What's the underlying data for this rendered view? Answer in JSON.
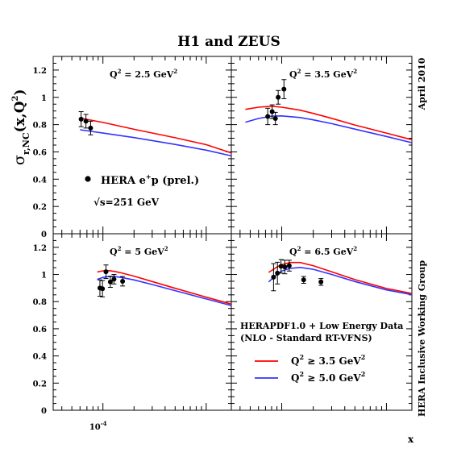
{
  "title": "H1 and ZEUS",
  "side_labels": {
    "top_right": "April 2010",
    "bottom_right": "HERA Inclusive Working Group"
  },
  "y_axis_label": {
    "main": "σ",
    "sub": "r,NC",
    "rest": "(x,Q",
    "sup": "2",
    "close": ")"
  },
  "x_axis_label": "x",
  "x_tick_label": {
    "base": "10",
    "exp": "-4"
  },
  "y_ticks": [
    "0",
    "0.2",
    "0.4",
    "0.6",
    "0.8",
    "1",
    "1.2"
  ],
  "legend_top": {
    "data_label": {
      "pre": "HERA e",
      "sup": "+",
      "post": "p (prel.)"
    },
    "energy": "√s=251 GeV"
  },
  "legend_bottom": {
    "line1": "HERAPDF1.0 + Low Energy Data",
    "line2": "(NLO - Standard RT-VFNS)",
    "entries": [
      {
        "pre": "Q",
        "sup": "2",
        "post": " ≥ 3.5 GeV",
        "sup2": "2",
        "color": "#ff0000"
      },
      {
        "pre": "Q",
        "sup": "2",
        "post": " ≥ 5.0 GeV",
        "sup2": "2",
        "color": "#3333ff"
      }
    ]
  },
  "colors": {
    "fit_q2_35": "#ff0000",
    "fit_q2_50": "#3333ff",
    "points": "#000000"
  },
  "chart_data": [
    {
      "type": "scatter",
      "label": {
        "pre": "Q",
        "sup": "2",
        "mid": " = 2.5 GeV",
        "sup2": "2"
      },
      "x_scale": "log",
      "xlim": [
        3.3e-05,
        0.00175
      ],
      "ylim": [
        0,
        1.3
      ],
      "points": [
        {
          "x": 6.15e-05,
          "y": 0.84,
          "err": 0.055
        },
        {
          "x": 6.85e-05,
          "y": 0.825,
          "err": 0.05
        },
        {
          "x": 7.6e-05,
          "y": 0.775,
          "err": 0.05
        }
      ],
      "series": [
        {
          "x": [
            6e-05,
            0.0001,
            0.0002,
            0.0005,
            0.001,
            0.00175
          ],
          "y": [
            0.848,
            0.816,
            0.766,
            0.704,
            0.653,
            0.592
          ]
        },
        {
          "x": [
            6e-05,
            0.0001,
            0.0002,
            0.0005,
            0.001,
            0.00175
          ],
          "y": [
            0.762,
            0.738,
            0.705,
            0.655,
            0.613,
            0.571
          ]
        }
      ]
    },
    {
      "type": "scatter",
      "label": {
        "pre": "Q",
        "sup": "2",
        "mid": " = 3.5 GeV",
        "sup2": "2"
      },
      "x_scale": "log",
      "xlim": [
        3.3e-05,
        0.00175
      ],
      "ylim": [
        0,
        1.3
      ],
      "points": [
        {
          "x": 7.35e-05,
          "y": 0.86,
          "err": 0.06
        },
        {
          "x": 8.1e-05,
          "y": 0.895,
          "err": 0.05
        },
        {
          "x": 8.7e-05,
          "y": 0.845,
          "err": 0.045
        },
        {
          "x": 9.25e-05,
          "y": 1.0,
          "err": 0.05
        },
        {
          "x": 0.000105,
          "y": 1.06,
          "err": 0.07
        }
      ],
      "series": [
        {
          "x": [
            4.5e-05,
            6e-05,
            8e-05,
            0.0001,
            0.00015,
            0.0002,
            0.0003,
            0.0005,
            0.001,
            0.00175
          ],
          "y": [
            0.912,
            0.928,
            0.935,
            0.928,
            0.906,
            0.882,
            0.846,
            0.797,
            0.738,
            0.689
          ]
        },
        {
          "x": [
            4.5e-05,
            6e-05,
            8e-05,
            0.0001,
            0.00015,
            0.0002,
            0.0003,
            0.0005,
            0.001,
            0.00175
          ],
          "y": [
            0.818,
            0.845,
            0.862,
            0.864,
            0.852,
            0.835,
            0.807,
            0.767,
            0.713,
            0.668
          ]
        }
      ]
    },
    {
      "type": "scatter",
      "label": {
        "pre": "Q",
        "sup": "2",
        "mid": " = 5 GeV",
        "sup2": "2"
      },
      "x_scale": "log",
      "xlim": [
        3.3e-05,
        0.00175
      ],
      "ylim": [
        0,
        1.3
      ],
      "points": [
        {
          "x": 9.35e-05,
          "y": 0.9,
          "err": 0.06
        },
        {
          "x": 9.9e-05,
          "y": 0.895,
          "err": 0.06
        },
        {
          "x": 0.000107,
          "y": 1.02,
          "err": 0.05
        },
        {
          "x": 0.000118,
          "y": 0.945,
          "err": 0.04
        },
        {
          "x": 0.000128,
          "y": 0.965,
          "err": 0.035
        },
        {
          "x": 0.000155,
          "y": 0.95,
          "err": 0.035
        }
      ],
      "series": [
        {
          "x": [
            8.8e-05,
            0.0001,
            0.000115,
            0.00013,
            0.00015,
            0.0002,
            0.0003,
            0.0005,
            0.001,
            0.00175
          ],
          "y": [
            1.018,
            1.027,
            1.028,
            1.022,
            1.012,
            0.988,
            0.948,
            0.898,
            0.833,
            0.782
          ]
        },
        {
          "x": [
            8.8e-05,
            0.0001,
            0.000115,
            0.00013,
            0.00015,
            0.0002,
            0.0003,
            0.0005,
            0.001,
            0.00175
          ],
          "y": [
            0.964,
            0.978,
            0.986,
            0.985,
            0.978,
            0.96,
            0.926,
            0.881,
            0.82,
            0.771
          ]
        }
      ]
    },
    {
      "type": "scatter",
      "label": {
        "pre": "Q",
        "sup": "2",
        "mid": " = 6.5 GeV",
        "sup2": "2"
      },
      "x_scale": "log",
      "xlim": [
        3.3e-05,
        0.00175
      ],
      "ylim": [
        0,
        1.3
      ],
      "points": [
        {
          "x": 8.35e-05,
          "y": 0.98,
          "err": 0.1
        },
        {
          "x": 9.1e-05,
          "y": 1.01,
          "err": 0.08
        },
        {
          "x": 9.85e-05,
          "y": 1.06,
          "err": 0.05
        },
        {
          "x": 0.000107,
          "y": 1.055,
          "err": 0.05
        },
        {
          "x": 0.000118,
          "y": 1.065,
          "err": 0.04
        },
        {
          "x": 0.000162,
          "y": 0.96,
          "err": 0.025
        },
        {
          "x": 0.000237,
          "y": 0.945,
          "err": 0.025
        }
      ],
      "series": [
        {
          "x": [
            7.5e-05,
            9e-05,
            0.0001,
            0.00012,
            0.00015,
            0.0002,
            0.0003,
            0.0005,
            0.001,
            0.00175
          ],
          "y": [
            1.015,
            1.055,
            1.072,
            1.088,
            1.088,
            1.065,
            1.02,
            0.962,
            0.897,
            0.86
          ]
        },
        {
          "x": [
            7.5e-05,
            9e-05,
            0.0001,
            0.00012,
            0.00015,
            0.0002,
            0.0003,
            0.0005,
            0.001,
            0.00175
          ],
          "y": [
            0.945,
            1.0,
            1.025,
            1.045,
            1.052,
            1.038,
            1.0,
            0.948,
            0.886,
            0.852
          ]
        }
      ]
    }
  ]
}
